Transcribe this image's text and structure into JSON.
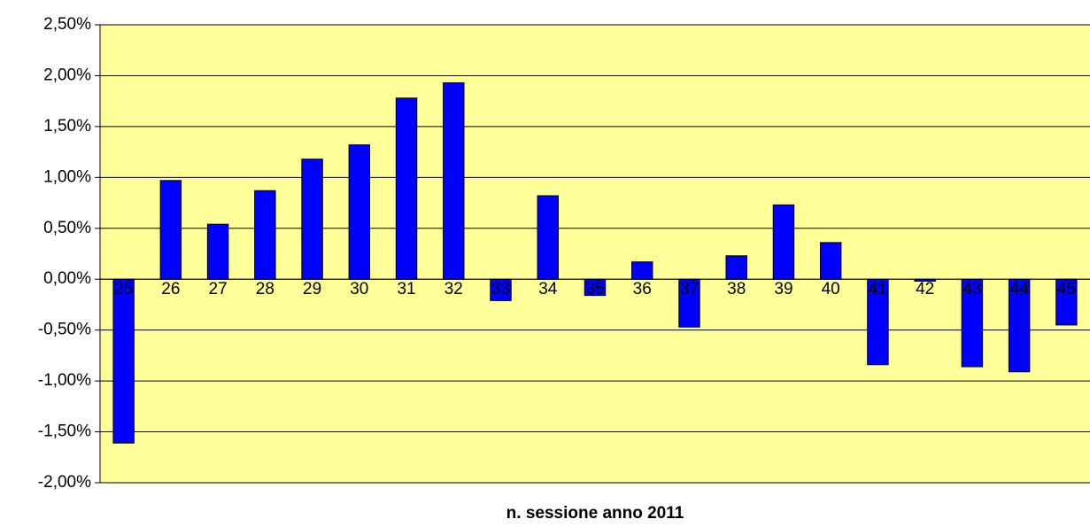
{
  "chart_data": {
    "type": "bar",
    "x_label": "n. sessione anno 2011",
    "categories": [
      "25",
      "26",
      "27",
      "28",
      "29",
      "30",
      "31",
      "32",
      "33",
      "34",
      "35",
      "36",
      "37",
      "38",
      "39",
      "40",
      "41",
      "42",
      "43",
      "44",
      "45"
    ],
    "values": [
      -1.61,
      0.97,
      0.54,
      0.87,
      1.18,
      1.32,
      1.78,
      1.93,
      -0.21,
      0.82,
      -0.16,
      0.17,
      -0.47,
      0.23,
      0.73,
      0.36,
      -0.84,
      -0.02,
      -0.86,
      -0.91,
      -0.45
    ],
    "color": "#0000ff",
    "ylim": [
      -2.0,
      2.5
    ],
    "yticks": [
      {
        "value": -2.0,
        "label": "-2,00%"
      },
      {
        "value": -1.5,
        "label": "-1,50%"
      },
      {
        "value": -1.0,
        "label": "-1,00%"
      },
      {
        "value": -0.5,
        "label": "-0,50%"
      },
      {
        "value": 0,
        "label": "0,00%"
      },
      {
        "value": 0.5,
        "label": "0,50%"
      },
      {
        "value": 1.0,
        "label": "1,00%"
      },
      {
        "value": 1.5,
        "label": "1,50%"
      },
      {
        "value": 2.0,
        "label": "2,00%"
      },
      {
        "value": 2.5,
        "label": "2,50%"
      }
    ],
    "grid": true,
    "background": "#ffff99"
  }
}
